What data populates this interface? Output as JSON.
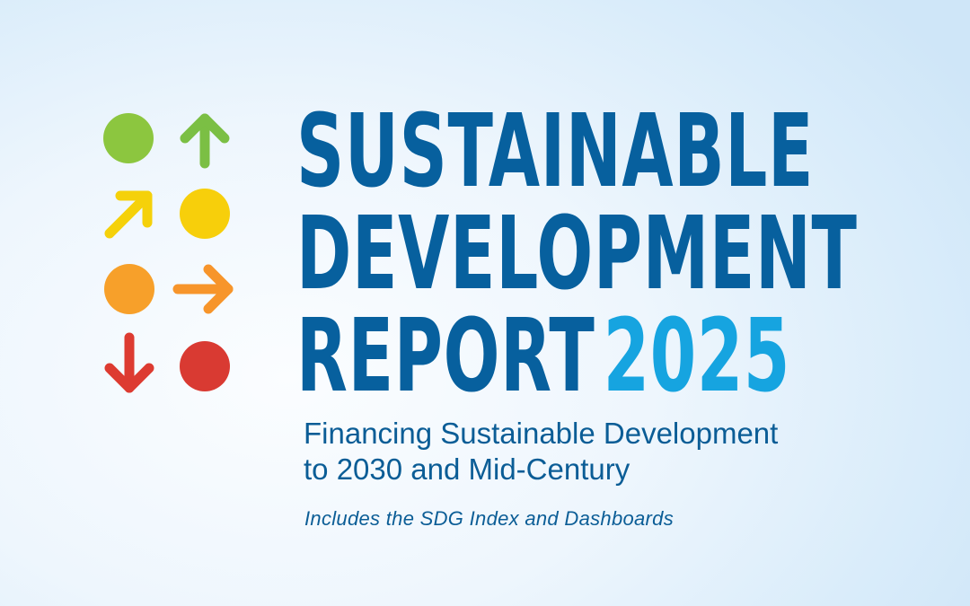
{
  "title": {
    "line1": "SUSTAINABLE",
    "line2": "DEVELOPMENT",
    "line3": "REPORT",
    "year": "2025"
  },
  "subtitle": {
    "line1": "Financing Sustainable Development",
    "line2": "to 2030 and Mid-Century"
  },
  "tagline": "Includes the SDG Index and Dashboards",
  "icons": [
    {
      "name": "green-circle-icon",
      "color": "#8cc63f"
    },
    {
      "name": "arrow-up-icon",
      "color": "#7bbf44"
    },
    {
      "name": "arrow-diagonal-up-right-icon",
      "color": "#f5d10a"
    },
    {
      "name": "yellow-circle-icon",
      "color": "#f7cf0b"
    },
    {
      "name": "orange-circle-icon",
      "color": "#f7a02a"
    },
    {
      "name": "arrow-right-icon",
      "color": "#f7952b"
    },
    {
      "name": "arrow-down-icon",
      "color": "#dd3b31"
    },
    {
      "name": "red-circle-icon",
      "color": "#d93a32"
    }
  ],
  "colors": {
    "title": "#07609e",
    "year": "#16a4e0",
    "subtitle": "#0b5d96"
  }
}
